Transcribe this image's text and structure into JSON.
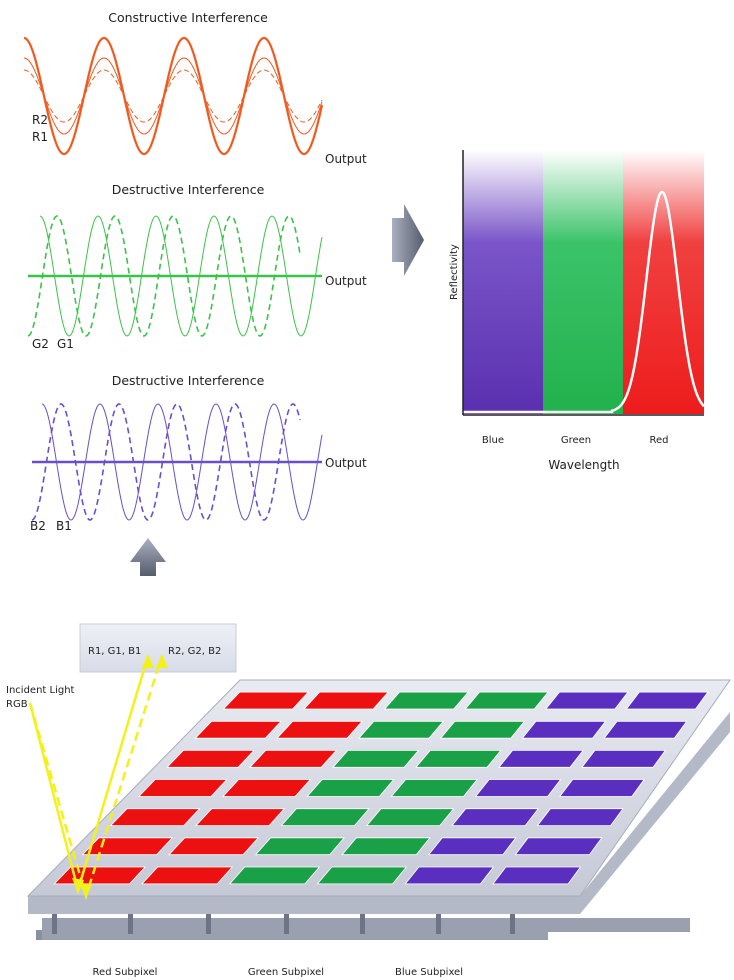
{
  "waves": {
    "constructive": {
      "title": "Constructive Interference",
      "label_r2": "R2",
      "label_r1": "R1",
      "output": "Output",
      "color": "#f05a1e"
    },
    "destructive_green": {
      "title": "Destructive Interference",
      "label_g2": "G2",
      "label_g1": "G1",
      "output": "Output",
      "color": "#3cc24a"
    },
    "destructive_blue": {
      "title": "Destructive Interference",
      "label_b2": "B2",
      "label_b1": "B1",
      "output": "Output",
      "color": "#6a4fc9"
    }
  },
  "reflect_chart": {
    "ylabel": "Reflectivity",
    "xlabel": "Wavelength",
    "bands": [
      "Blue",
      "Green",
      "Red"
    ],
    "colors": {
      "blue": "#5a2fb0",
      "green": "#22b14c",
      "red": "#ee1c1c"
    }
  },
  "device": {
    "light_box": {
      "left": "R1, G1, B1",
      "right": "R2, G2, B2"
    },
    "incident": [
      "Incident Light",
      "RGB"
    ],
    "subpixels": [
      "Red Subpixel",
      "Green Subpixel",
      "Blue Subpixel"
    ],
    "colors": {
      "red": "#ec1010",
      "green": "#1aa046",
      "blue": "#5a2fc0",
      "light": "#f2f21a"
    }
  }
}
